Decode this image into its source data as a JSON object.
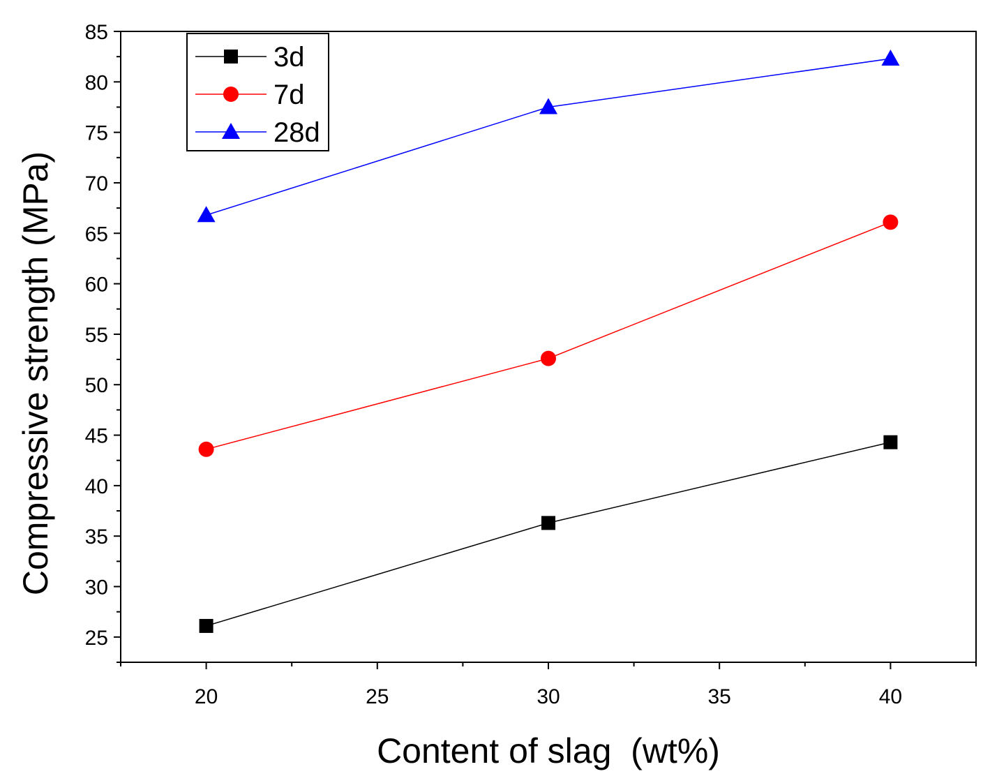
{
  "chart_data": {
    "type": "line",
    "xlabel": "Content of slag  (wt%)",
    "ylabel": "Compressive strength (MPa)",
    "xlim": [
      17.5,
      42.5
    ],
    "ylim": [
      22.5,
      85
    ],
    "x_ticks": [
      20,
      25,
      30,
      35,
      40
    ],
    "y_ticks": [
      25,
      30,
      35,
      40,
      45,
      50,
      55,
      60,
      65,
      70,
      75,
      80,
      85
    ],
    "x": [
      20,
      30,
      40
    ],
    "legend_position": "top-left",
    "grid": false,
    "series": [
      {
        "name": "3d",
        "values": [
          26.1,
          36.3,
          44.3
        ],
        "color": "#000000",
        "marker": "square"
      },
      {
        "name": "7d",
        "values": [
          43.6,
          52.6,
          66.1
        ],
        "color": "#ff0000",
        "marker": "circle"
      },
      {
        "name": "28d",
        "values": [
          66.8,
          77.5,
          82.3
        ],
        "color": "#0000ff",
        "marker": "triangle"
      }
    ]
  }
}
